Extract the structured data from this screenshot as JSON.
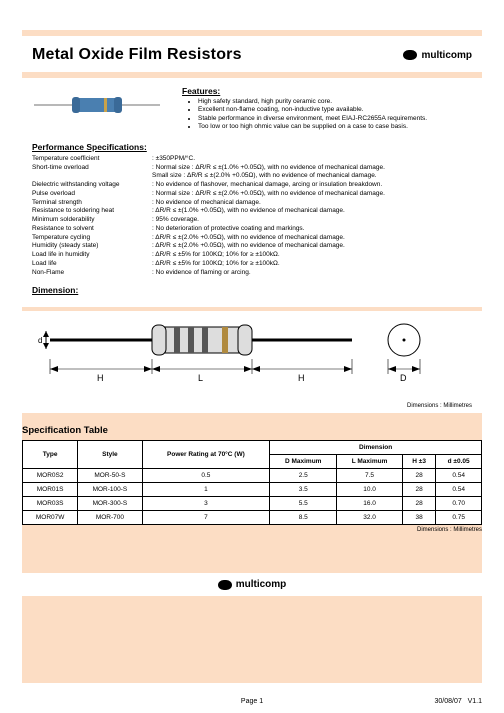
{
  "header": {
    "title": "Metal Oxide Film Resistors",
    "brand": "multicomp"
  },
  "features": {
    "heading": "Features:",
    "items": [
      "High safety standard, high purity ceramic core.",
      "Excellent non-flame coating, non-inductive type available.",
      "Stable performance in diverse environment, meet EIAJ-RC2655A requirements.",
      "Too low or too high ohmic value can be supplied on a case to case basis."
    ]
  },
  "perf": {
    "heading": "Performance Specifications:",
    "rows": [
      {
        "label": "Temperature coefficient",
        "value": "±350PPM/°C."
      },
      {
        "label": "Short-time overload",
        "value": "Normal size : ΔR/R ≤ ±(1.0% +0.05Ω), with no evidence of mechanical damage.",
        "sub": "Small size : ΔR/R ≤ ±(2.0% +0.05Ω), with no evidence of mechanical damage."
      },
      {
        "label": "Dielectric withstanding voltage",
        "value": "No evidence of flashover, mechanical damage, arcing or insulation breakdown."
      },
      {
        "label": "Pulse overload",
        "value": "Normal size : ΔR/R ≤ ±(2.0% +0.05Ω), with no evidence of mechanical damage."
      },
      {
        "label": "Terminal strength",
        "value": "No evidence of mechanical damage."
      },
      {
        "label": "Resistance to soldering heat",
        "value": "ΔR/R ≤ ±(1.0% +0.05Ω), with no evidence of mechanical damage."
      },
      {
        "label": "Minimum solderability",
        "value": "95% coverage."
      },
      {
        "label": "Resistance to solvent",
        "value": "No deterioration of protective coating and markings."
      },
      {
        "label": "Temperature cycling",
        "value": "ΔR/R ≤ ±(2.0% +0.05Ω), with no evidence of mechanical damage."
      },
      {
        "label": "Humidity (steady state)",
        "value": "ΔR/R ≤ ±(2.0% +0.05Ω), with no evidence of mechanical damage."
      },
      {
        "label": "Load life in humidity",
        "value": "ΔR/R ≤ ±5% for 100KΩ; 10% for ≥ ±100kΩ."
      },
      {
        "label": "Load life",
        "value": "ΔR/R ≤ ±5% for 100KΩ; 10% for ≥ ±100kΩ."
      },
      {
        "label": "Non-Flame",
        "value": "No evidence of flaming or arcing."
      }
    ]
  },
  "dimension": {
    "heading": "Dimension:",
    "note": "Dimensions : Millimetres",
    "labels": {
      "d": "d",
      "H": "H",
      "L": "L",
      "D": "D"
    },
    "svg": {
      "lead_color": "#888888",
      "body_fill": "#dddddd",
      "band_colors": [
        "#555555",
        "#555555",
        "#555555",
        "#b08a3e"
      ],
      "stroke": "#000000"
    }
  },
  "spec_table": {
    "heading": "Specification Table",
    "note": "Dimensions : Millimetres",
    "head": {
      "type": "Type",
      "style": "Style",
      "power": "Power Rating at 70°C (W)",
      "dim": "Dimension",
      "cols": [
        "D Maximum",
        "L Maximum",
        "H ±3",
        "d ±0.05"
      ]
    },
    "rows": [
      {
        "type": "MOR0S2",
        "style": "MOR-50-S",
        "power": "0.5",
        "D": "2.5",
        "L": "7.5",
        "H": "28",
        "d": "0.54"
      },
      {
        "type": "MOR01S",
        "style": "MOR-100-S",
        "power": "1",
        "D": "3.5",
        "L": "10.0",
        "H": "28",
        "d": "0.54"
      },
      {
        "type": "MOR03S",
        "style": "MOR-300-S",
        "power": "3",
        "D": "5.5",
        "L": "16.0",
        "H": "28",
        "d": "0.70"
      },
      {
        "type": "MOR07W",
        "style": "MOR-700",
        "power": "7",
        "D": "8.5",
        "L": "32.0",
        "H": "38",
        "d": "0.75"
      }
    ]
  },
  "resistor_graphic": {
    "lead_color": "#b8b8b8",
    "body_color": "#4a7fb0",
    "cap_color": "#3a6a98",
    "band_color": "#c9a24a"
  },
  "footer": {
    "page": "Page 1",
    "date": "30/08/07",
    "ver": "V1.1"
  }
}
